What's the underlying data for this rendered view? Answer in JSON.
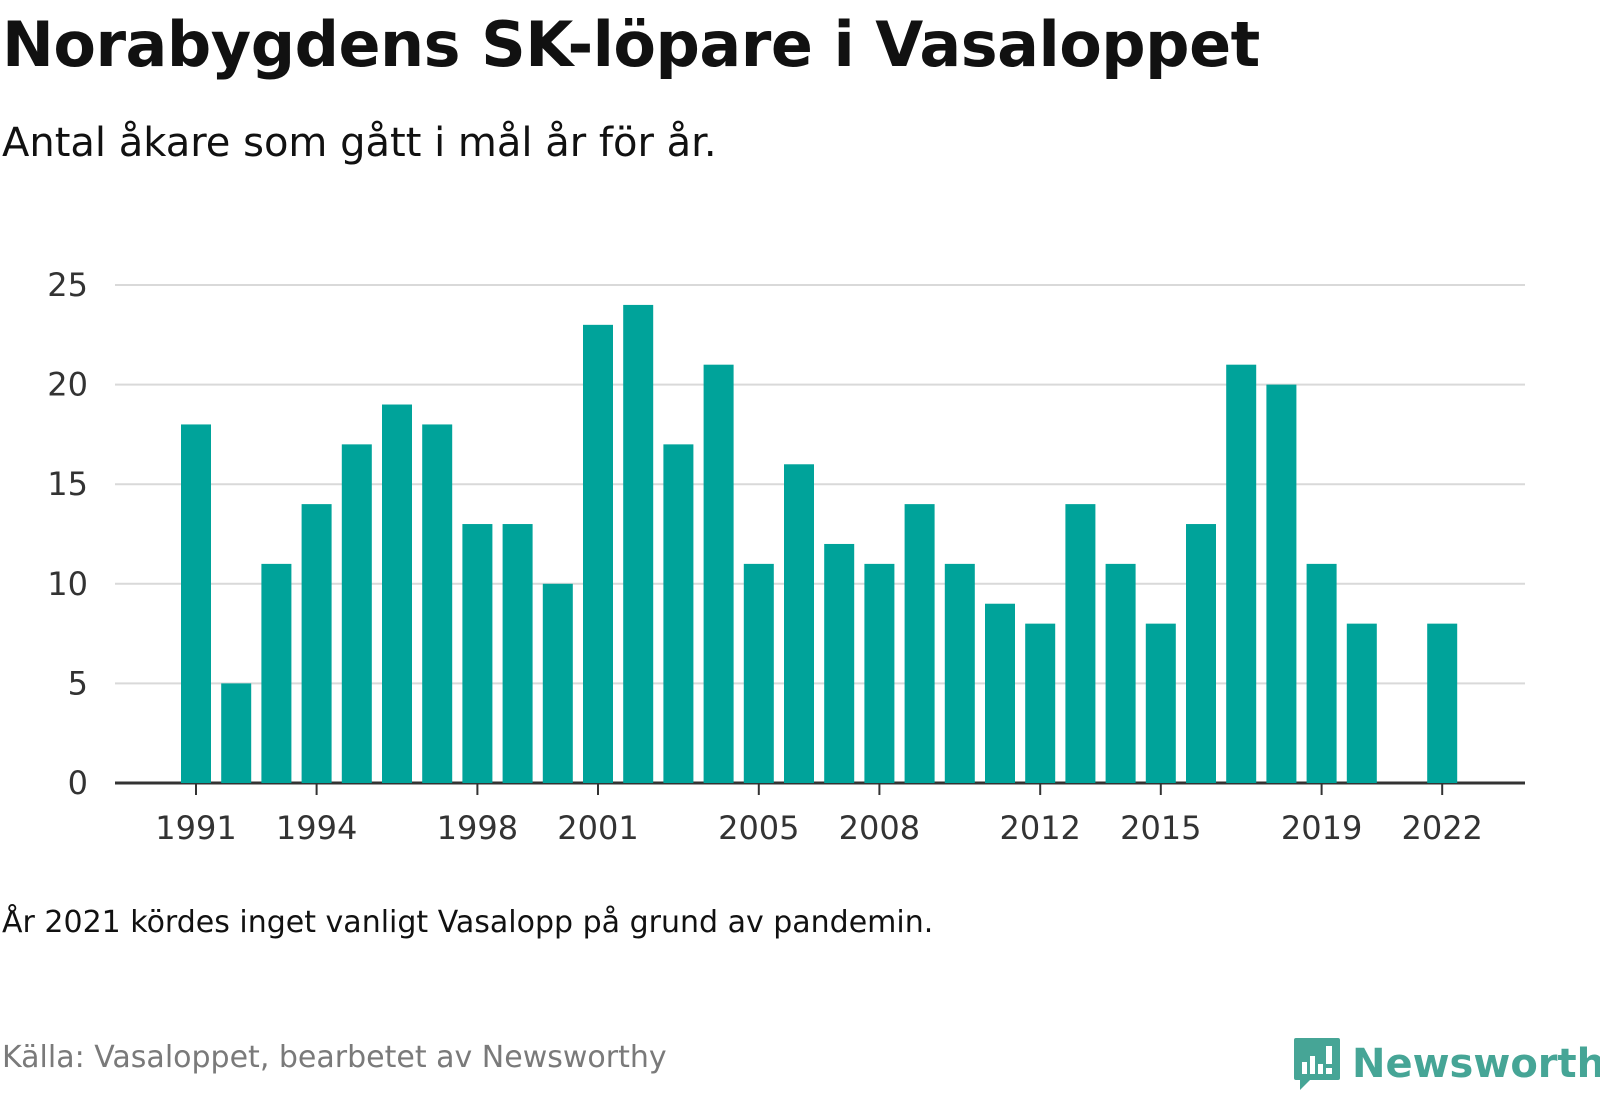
{
  "title": "Norabygdens SK-löpare i Vasaloppet",
  "subtitle": "Antal åkare som gått i mål år för år.",
  "note": "År 2021 kördes inget vanligt Vasalopp på grund av pandemin.",
  "source": "Källa: Vasaloppet, bearbetet av Newsworthy",
  "brand": {
    "name": "Newsworthy",
    "icon": "newsworthy-logo-icon",
    "color": "#46a596"
  },
  "chart_data": {
    "type": "bar",
    "categories": [
      1991,
      1992,
      1993,
      1994,
      1995,
      1996,
      1997,
      1998,
      1999,
      2000,
      2001,
      2002,
      2003,
      2004,
      2005,
      2006,
      2007,
      2008,
      2009,
      2010,
      2011,
      2012,
      2013,
      2014,
      2015,
      2016,
      2017,
      2018,
      2019,
      2020,
      2021,
      2022
    ],
    "values": [
      18,
      5,
      11,
      14,
      17,
      19,
      18,
      13,
      13,
      10,
      23,
      24,
      17,
      21,
      11,
      16,
      12,
      11,
      14,
      11,
      9,
      8,
      14,
      11,
      8,
      13,
      21,
      20,
      11,
      8,
      null,
      8
    ],
    "x_tick_labels": [
      1991,
      1994,
      1998,
      2001,
      2005,
      2008,
      2012,
      2015,
      2019,
      2022
    ],
    "y_ticks": [
      0,
      5,
      10,
      15,
      20,
      25
    ],
    "ylim": [
      0,
      25
    ],
    "grid": true,
    "bar_color": "#00a39a",
    "xlabel": "",
    "ylabel": ""
  }
}
